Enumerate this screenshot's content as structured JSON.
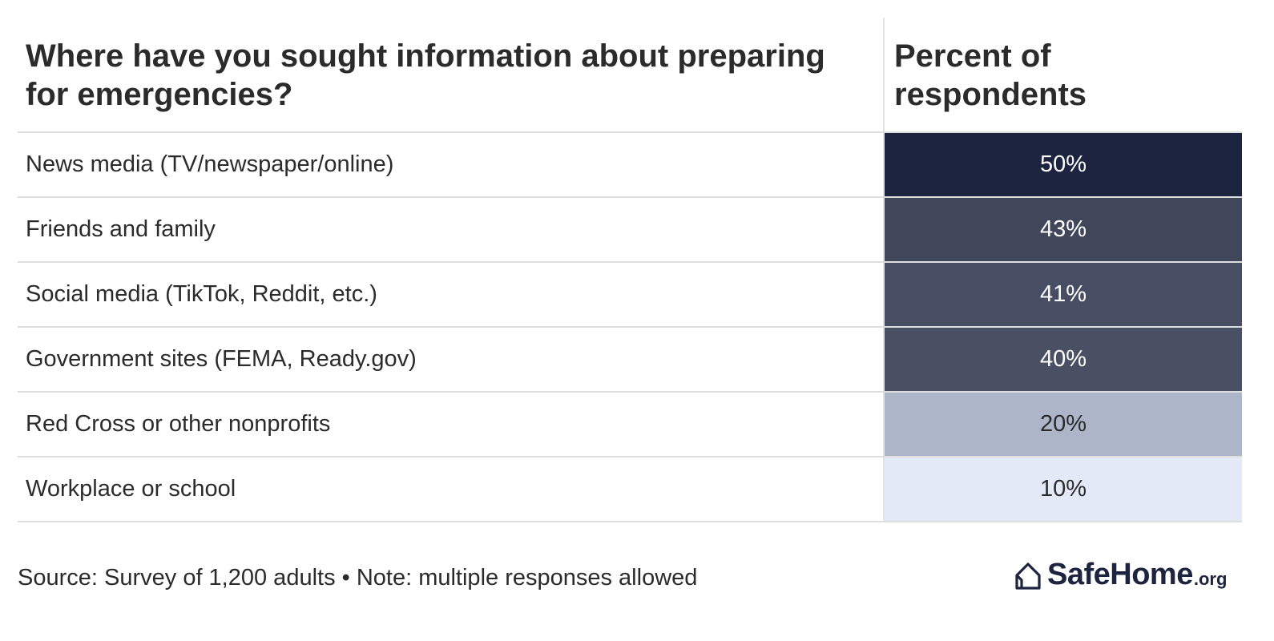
{
  "chart_data": {
    "type": "table",
    "columns": [
      "Where have you sought information about preparing for emergencies?",
      "Percent of respondents"
    ],
    "categories": [
      "News media (TV/newspaper/online)",
      "Friends and family",
      "Social media (TikTok, Reddit, etc.)",
      "Government sites (FEMA, Ready.gov)",
      "Red Cross or other nonprofits",
      "Workplace or school"
    ],
    "values": [
      50,
      43,
      41,
      40,
      20,
      10
    ],
    "value_labels": [
      "50%",
      "43%",
      "41%",
      "40%",
      "20%",
      "10%"
    ],
    "cell_colors": [
      "#1d2440",
      "#41475a",
      "#474d62",
      "#4a5064",
      "#adb6c8",
      "#e3e9f6"
    ],
    "text_colors": [
      "#ffffff",
      "#ffffff",
      "#ffffff",
      "#ffffff",
      "#2b2b2b",
      "#2b2b2b"
    ]
  },
  "footer": {
    "source": "Source: Survey of 1,200 adults • Note: multiple responses allowed"
  },
  "logo": {
    "main": "SafeHome",
    "suffix": ".org",
    "icon": "house-icon"
  },
  "colors": {
    "brand": "#1d2440",
    "divider": "#dedede"
  }
}
